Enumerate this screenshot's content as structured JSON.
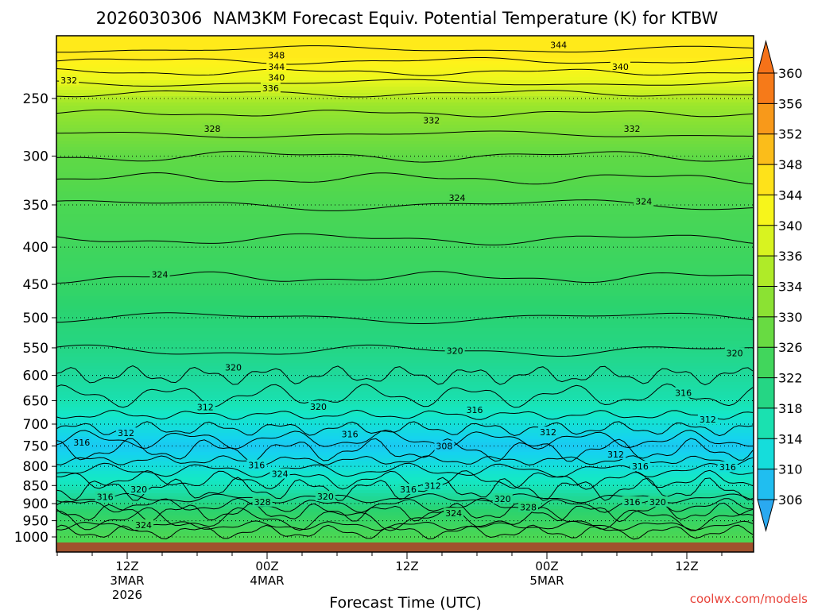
{
  "chart_data": {
    "type": "heatmap",
    "title": "2026030306  NAM3KM Forecast Equiv. Potential Temperature (K) for KTBW",
    "xlabel": "Forecast Time (UTC)",
    "ylabel": "",
    "x_ticks": [
      {
        "hour": 9,
        "lines": [
          "12Z",
          "3MAR",
          "2026"
        ]
      },
      {
        "hour": 21,
        "lines": [
          "00Z",
          "4MAR"
        ]
      },
      {
        "hour": 33,
        "lines": [
          "12Z"
        ]
      },
      {
        "hour": 45,
        "lines": [
          "00Z",
          "5MAR"
        ]
      },
      {
        "hour": 57,
        "lines": [
          "12Z"
        ]
      }
    ],
    "xlim": [
      3,
      63
    ],
    "y_ticks": [
      250,
      300,
      350,
      400,
      450,
      500,
      550,
      600,
      650,
      700,
      750,
      800,
      850,
      900,
      950,
      1000
    ],
    "ylim": [
      1010,
      210
    ],
    "y_scale": "log",
    "grid": true,
    "colorbar": {
      "levels": [
        306,
        310,
        314,
        318,
        322,
        326,
        330,
        334,
        336,
        340,
        344,
        348,
        352,
        356,
        360
      ],
      "range": [
        306,
        360
      ]
    },
    "contour_interval": 4,
    "units": "K",
    "profiles": [
      {
        "p": 220,
        "theta": 345
      },
      {
        "p": 250,
        "theta": 335
      },
      {
        "p": 300,
        "theta": 327
      },
      {
        "p": 350,
        "theta": 325
      },
      {
        "p": 450,
        "theta": 323
      },
      {
        "p": 550,
        "theta": 320
      },
      {
        "p": 650,
        "theta": 316
      },
      {
        "p": 750,
        "theta": 309
      },
      {
        "p": 850,
        "theta": 315
      },
      {
        "p": 920,
        "theta": 322
      },
      {
        "p": 1000,
        "theta": 325
      }
    ],
    "contour_labels": [
      {
        "text": "348",
        "hour": 21.8,
        "p": 218
      },
      {
        "text": "344",
        "hour": 21.8,
        "p": 226
      },
      {
        "text": "340",
        "hour": 21.8,
        "p": 234
      },
      {
        "text": "336",
        "hour": 21.3,
        "p": 242
      },
      {
        "text": "332",
        "hour": 4.0,
        "p": 236
      },
      {
        "text": "344",
        "hour": 46.0,
        "p": 211
      },
      {
        "text": "340",
        "hour": 51.3,
        "p": 226
      },
      {
        "text": "328",
        "hour": 16.3,
        "p": 275
      },
      {
        "text": "332",
        "hour": 35.1,
        "p": 268
      },
      {
        "text": "332",
        "hour": 52.3,
        "p": 275
      },
      {
        "text": "324",
        "hour": 37.3,
        "p": 342
      },
      {
        "text": "324",
        "hour": 53.3,
        "p": 346
      },
      {
        "text": "324",
        "hour": 11.8,
        "p": 436
      },
      {
        "text": "320",
        "hour": 37.1,
        "p": 555
      },
      {
        "text": "320",
        "hour": 61.1,
        "p": 559
      },
      {
        "text": "320",
        "hour": 18.1,
        "p": 585
      },
      {
        "text": "316",
        "hour": 56.7,
        "p": 634
      },
      {
        "text": "312",
        "hour": 15.7,
        "p": 663
      },
      {
        "text": "320",
        "hour": 25.4,
        "p": 662
      },
      {
        "text": "316",
        "hour": 38.8,
        "p": 669
      },
      {
        "text": "312",
        "hour": 58.8,
        "p": 690
      },
      {
        "text": "312",
        "hour": 45.1,
        "p": 718
      },
      {
        "text": "316",
        "hour": 28.1,
        "p": 722
      },
      {
        "text": "312",
        "hour": 8.9,
        "p": 720
      },
      {
        "text": "308",
        "hour": 36.2,
        "p": 750
      },
      {
        "text": "316",
        "hour": 5.1,
        "p": 742
      },
      {
        "text": "312",
        "hour": 50.9,
        "p": 770
      },
      {
        "text": "316",
        "hour": 20.1,
        "p": 797
      },
      {
        "text": "316",
        "hour": 53.0,
        "p": 800
      },
      {
        "text": "316",
        "hour": 60.5,
        "p": 802
      },
      {
        "text": "324",
        "hour": 22.1,
        "p": 819
      },
      {
        "text": "320",
        "hour": 10.0,
        "p": 860
      },
      {
        "text": "312",
        "hour": 35.2,
        "p": 850
      },
      {
        "text": "316",
        "hour": 33.1,
        "p": 860
      },
      {
        "text": "316",
        "hour": 7.1,
        "p": 881
      },
      {
        "text": "320",
        "hour": 26.0,
        "p": 880
      },
      {
        "text": "328",
        "hour": 20.6,
        "p": 895
      },
      {
        "text": "320",
        "hour": 41.2,
        "p": 886
      },
      {
        "text": "328",
        "hour": 43.4,
        "p": 910
      },
      {
        "text": "316",
        "hour": 52.3,
        "p": 895
      },
      {
        "text": "320",
        "hour": 54.5,
        "p": 895
      },
      {
        "text": "324",
        "hour": 37.0,
        "p": 928
      },
      {
        "text": "324",
        "hour": 10.4,
        "p": 963
      }
    ]
  },
  "watermark": "coolwx.com/models"
}
